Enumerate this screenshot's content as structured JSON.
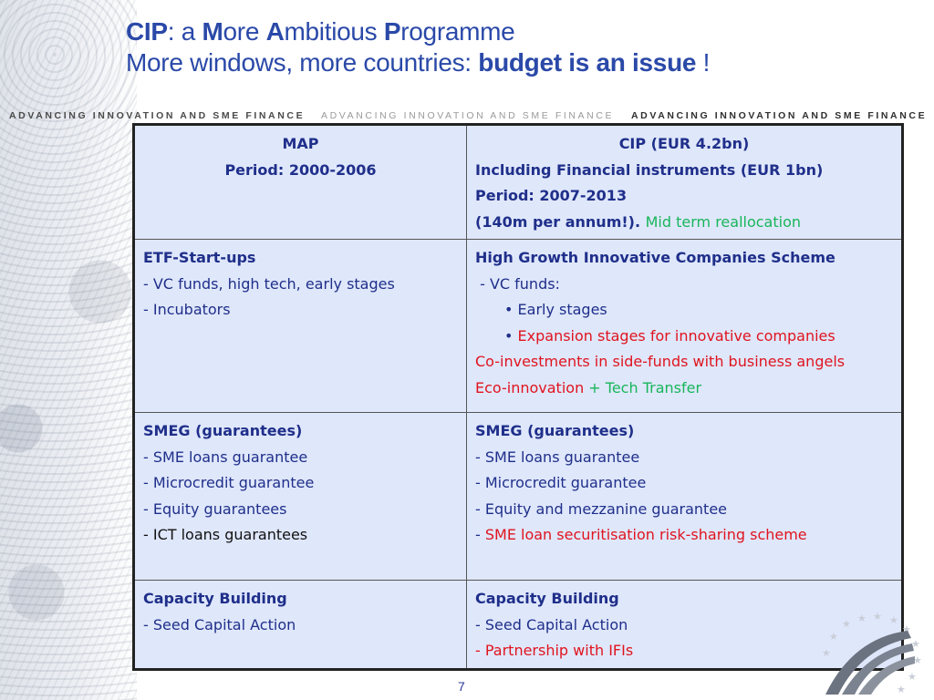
{
  "title": {
    "line1": {
      "cip": "CIP",
      "sep": ": a ",
      "m": "M",
      "ore": "ore ",
      "a": "A",
      "mbitious": "mbitious ",
      "p": "P",
      "rogramme": "rogramme"
    },
    "line2": {
      "prefix": "More windows, more countries: ",
      "emph": "budget is an issue",
      "suffix": " !"
    }
  },
  "banner": {
    "text1": "ADVANCING INNOVATION AND SME FINANCE",
    "text2": "ADVANCING INNOVATION AND SME FINANCE",
    "text3": "ADVANCING INNOVATION AND SME FINANCE"
  },
  "table": {
    "header": {
      "left": {
        "line1": "MAP",
        "line2": "Period: 2000-2006"
      },
      "right": {
        "line1": "CIP (EUR 4.2bn)",
        "line2": "Including Financial instruments (EUR 1bn)",
        "line3": "Period: 2007-2013",
        "line4": "(140m per annum!).",
        "line4_note": "Mid term reallocation"
      }
    },
    "row1": {
      "left": {
        "title": "ETF-Start-ups",
        "item1": "- VC funds, high tech, early stages",
        "item2": "- Incubators"
      },
      "right": {
        "title": "High Growth Innovative Companies Scheme",
        "item1": " - VC funds:",
        "bullet1": "• Early stages",
        "bullet2_dot": "• ",
        "bullet2": "Expansion stages for innovative companies",
        "item2": "Co-investments in side-funds with business angels",
        "item3": "Eco-innovation",
        "item3_extra": " + Tech Transfer"
      }
    },
    "row2": {
      "left": {
        "title": "SMEG (guarantees)",
        "item1": "- SME loans guarantee",
        "item2": "- Microcredit guarantee",
        "item3": "- Equity guarantees",
        "item4": "- ICT loans guarantees"
      },
      "right": {
        "title": "SMEG (guarantees)",
        "item1": "- SME loans guarantee",
        "item2": "- Microcredit guarantee",
        "item3": "- Equity and mezzanine guarantee",
        "item4_dash": "- ",
        "item4": "SME loan securitisation risk-sharing scheme"
      }
    },
    "row3": {
      "left": {
        "title": "Capacity Building",
        "item1": "- Seed Capital Action"
      },
      "right": {
        "title": "Capacity Building",
        "item1": "- Seed Capital Action",
        "item2": "- Partnership with IFIs"
      }
    }
  },
  "page_number": "7",
  "colors": {
    "title": "#2a49a8",
    "table_bg": "#dfe7fb",
    "text": "#1f2f8a",
    "red": "#e0141e",
    "green": "#18b65a"
  }
}
